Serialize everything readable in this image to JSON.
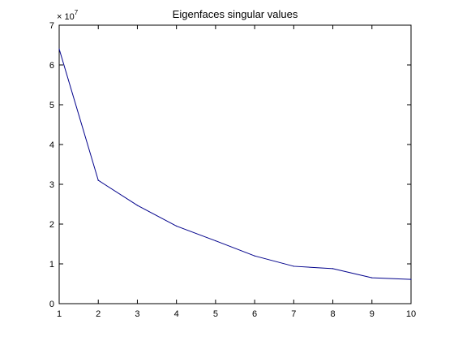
{
  "chart_data": {
    "type": "line",
    "title": "Eigenfaces singular values",
    "xlabel": "",
    "ylabel": "",
    "y_multiplier_base": "× 10",
    "y_multiplier_exponent": "7",
    "xlim": [
      1,
      10
    ],
    "ylim": [
      0,
      7
    ],
    "x_ticks": [
      "1",
      "2",
      "3",
      "4",
      "5",
      "6",
      "7",
      "8",
      "9",
      "10"
    ],
    "y_ticks": [
      "0",
      "1",
      "2",
      "3",
      "4",
      "5",
      "6",
      "7"
    ],
    "grid": false,
    "series": [
      {
        "color": "#00008b",
        "x": [
          1,
          2,
          3,
          4,
          5,
          6,
          7,
          8,
          9,
          10
        ],
        "y": [
          64000000,
          31000000,
          24700000,
          19500000,
          15800000,
          12000000,
          9400000,
          8800000,
          6500000,
          6100000
        ]
      }
    ]
  }
}
